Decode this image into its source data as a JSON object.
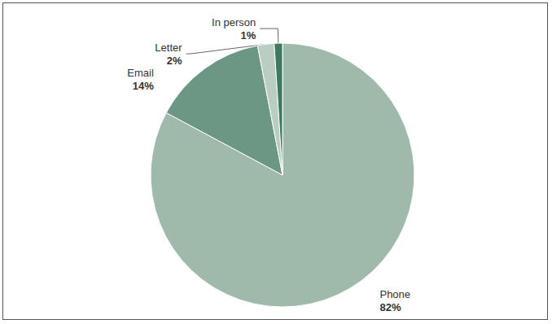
{
  "chart_data": {
    "type": "pie",
    "categories": [
      "Phone",
      "Email",
      "Letter",
      "In person"
    ],
    "values": [
      82,
      14,
      2,
      1
    ],
    "value_labels": [
      "82%",
      "14%",
      "2%",
      "1%"
    ],
    "colors": [
      "#9fbaab",
      "#6b9784",
      "#b9cdc2",
      "#3d7a5d"
    ]
  }
}
